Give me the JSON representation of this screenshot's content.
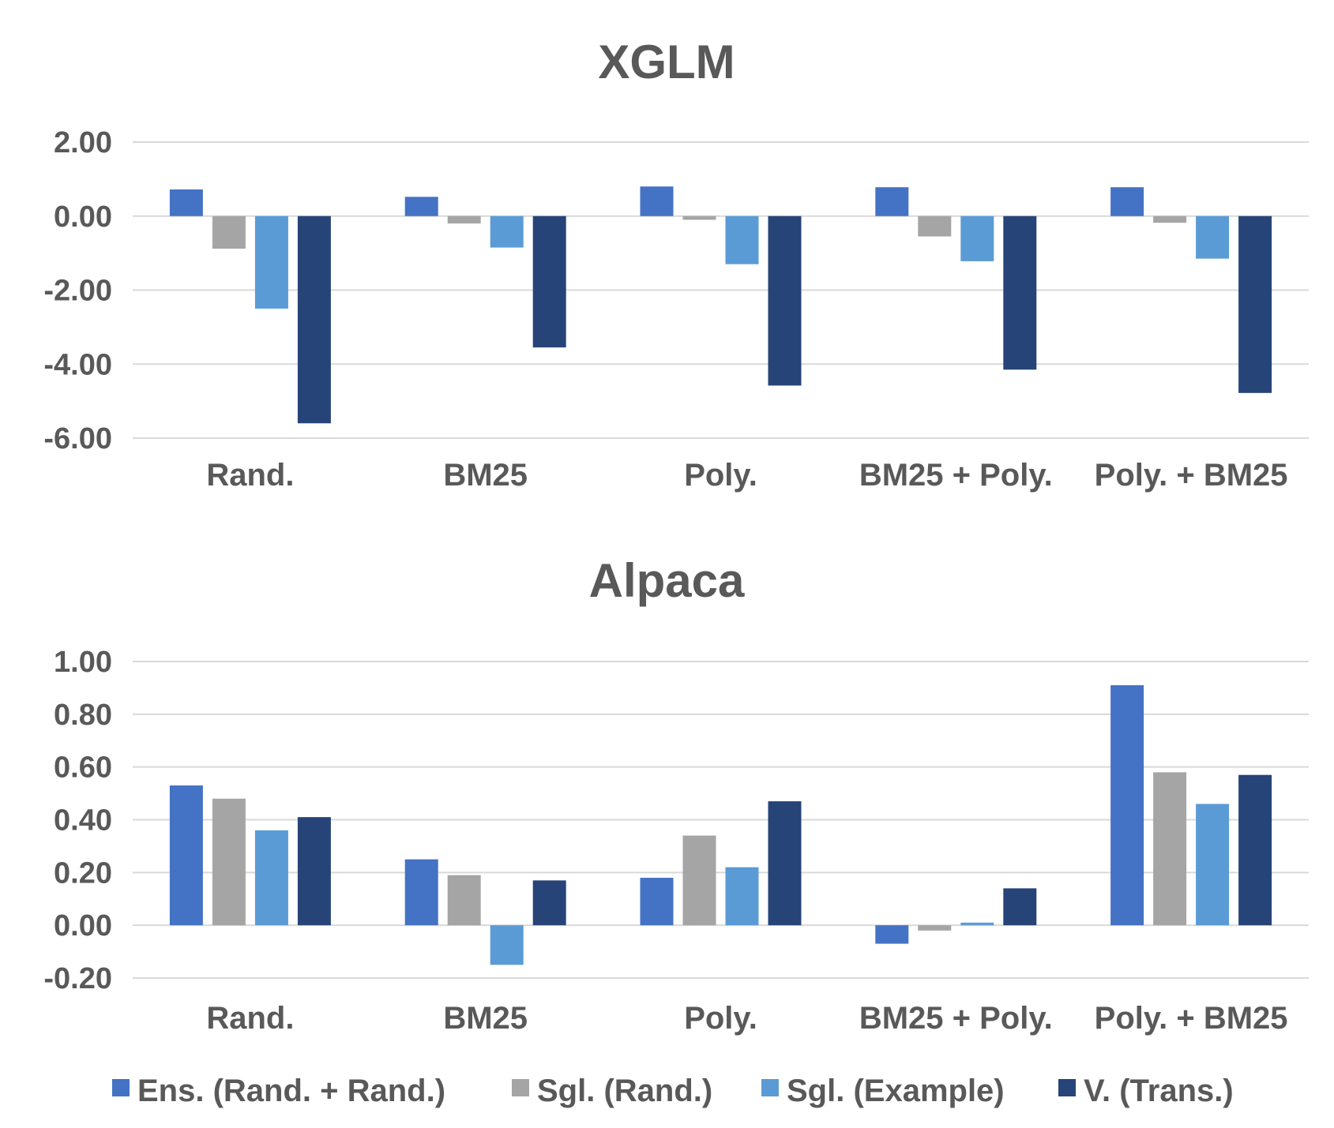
{
  "chart_data": [
    {
      "type": "bar",
      "title": "XGLM",
      "categories": [
        "Rand.",
        "BM25",
        "Poly.",
        "BM25 + Poly.",
        "Poly. + BM25"
      ],
      "ylim": [
        -6,
        2
      ],
      "yticks": [
        2,
        0,
        -2,
        -4,
        -6
      ],
      "tick_format": "2dp",
      "grid": true,
      "series": [
        {
          "name": "Ens. (Rand. + Rand.)",
          "color": "#4472C4",
          "values": [
            0.72,
            0.52,
            0.8,
            0.78,
            0.78
          ]
        },
        {
          "name": "Sgl. (Rand.)",
          "color": "#A5A5A5",
          "values": [
            -0.88,
            -0.2,
            -0.1,
            -0.55,
            -0.18
          ]
        },
        {
          "name": "Sgl. (Example)",
          "color": "#5B9BD5",
          "values": [
            -2.5,
            -0.85,
            -1.3,
            -1.22,
            -1.15
          ]
        },
        {
          "name": "V. (Trans.)",
          "color": "#264478",
          "values": [
            -5.6,
            -3.55,
            -4.58,
            -4.15,
            -4.78
          ]
        }
      ]
    },
    {
      "type": "bar",
      "title": "Alpaca",
      "categories": [
        "Rand.",
        "BM25",
        "Poly.",
        "BM25 + Poly.",
        "Poly. + BM25"
      ],
      "ylim": [
        -0.2,
        1.0
      ],
      "yticks": [
        1.0,
        0.8,
        0.6,
        0.4,
        0.2,
        0.0,
        -0.2
      ],
      "grid": true,
      "series": [
        {
          "name": "Ens. (Rand. + Rand.)",
          "color": "#4472C4",
          "values": [
            0.53,
            0.25,
            0.18,
            -0.07,
            0.91
          ]
        },
        {
          "name": "Sgl. (Rand.)",
          "color": "#A5A5A5",
          "values": [
            0.48,
            0.19,
            0.34,
            -0.02,
            0.58
          ]
        },
        {
          "name": "Sgl. (Example)",
          "color": "#5B9BD5",
          "values": [
            0.36,
            -0.15,
            0.22,
            0.01,
            0.46
          ]
        },
        {
          "name": "V. (Trans.)",
          "color": "#264478",
          "values": [
            0.41,
            0.17,
            0.47,
            0.14,
            0.57
          ]
        }
      ]
    }
  ],
  "legend": {
    "position": "bottom",
    "items": [
      {
        "label": "Ens. (Rand. + Rand.)",
        "color": "#4472C4"
      },
      {
        "label": "Sgl. (Rand.)",
        "color": "#A5A5A5"
      },
      {
        "label": "Sgl. (Example)",
        "color": "#5B9BD5"
      },
      {
        "label": "V. (Trans.)",
        "color": "#264478"
      }
    ]
  }
}
